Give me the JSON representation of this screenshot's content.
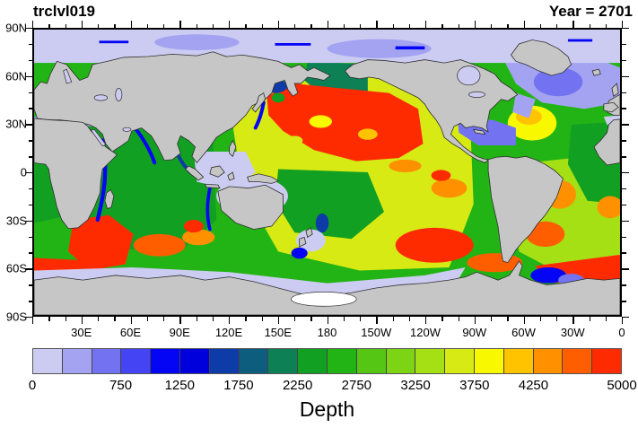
{
  "header": {
    "title_left": "trclvl019",
    "title_right": "Year = 2701"
  },
  "map": {
    "projection": "equirectangular, longitude 0E to 360E (wrap at Greenwich), latitude 90N to 90S",
    "x_tick_labels": [
      "30E",
      "60E",
      "90E",
      "120E",
      "150E",
      "180",
      "150W",
      "120W",
      "90W",
      "60W",
      "30W",
      "0"
    ],
    "x_tick_lons": [
      30,
      60,
      90,
      120,
      150,
      180,
      210,
      240,
      270,
      300,
      330,
      360
    ],
    "y_tick_labels": [
      "90N",
      "60N",
      "30N",
      "0",
      "30S",
      "60S",
      "90S"
    ],
    "y_tick_lats": [
      90,
      60,
      30,
      0,
      -30,
      -60,
      -90
    ],
    "major_tick_deg": 30,
    "minor_tick_deg": 10,
    "colors": {
      "land": "#c6c6c6",
      "coastline": "#2f2f2f",
      "shelf_lavender": "#ccccf2",
      "ice_shelf_white": "#ffffff",
      "frame": "#000000"
    }
  },
  "colorbar": {
    "title": "Depth",
    "min": 0,
    "max": 5000,
    "interval": 250,
    "tick_labels": [
      "0",
      "750",
      "1250",
      "1750",
      "2250",
      "2750",
      "3250",
      "3750",
      "4250",
      "5000"
    ],
    "tick_values": [
      0,
      750,
      1250,
      1750,
      2250,
      2750,
      3250,
      3750,
      4250,
      5000
    ],
    "colors": [
      "#ccccf2",
      "#a3a3f2",
      "#7373f2",
      "#4444f5",
      "#0505f5",
      "#0000dd",
      "#0d3ba8",
      "#0d5e7e",
      "#0e8055",
      "#12a022",
      "#22b414",
      "#55c614",
      "#7dd414",
      "#a5e014",
      "#d7ea14",
      "#f8f800",
      "#ffc300",
      "#ff9100",
      "#ff5e00",
      "#ff2b00"
    ]
  },
  "chart_data": {
    "type": "heatmap",
    "title": "trclvl019",
    "annotation": "Year = 2701",
    "colorbar_title": "Depth",
    "value_range": [
      0,
      5000
    ],
    "contour_interval": 250,
    "n_color_segments": 20,
    "palette": [
      "#ccccf2",
      "#a3a3f2",
      "#7373f2",
      "#4444f5",
      "#0505f5",
      "#0000dd",
      "#0d3ba8",
      "#0d5e7e",
      "#0e8055",
      "#12a022",
      "#22b414",
      "#55c614",
      "#7dd414",
      "#a5e014",
      "#d7ea14",
      "#f8f800",
      "#ffc300",
      "#ff9100",
      "#ff5e00",
      "#ff2b00"
    ],
    "x_axis": {
      "label": "",
      "tick_labels": [
        "30E",
        "60E",
        "90E",
        "120E",
        "150E",
        "180",
        "150W",
        "120W",
        "90W",
        "60W",
        "30W",
        "0"
      ],
      "range_deg": [
        0,
        360
      ]
    },
    "y_axis": {
      "label": "",
      "tick_labels": [
        "90N",
        "60N",
        "30N",
        "0",
        "30S",
        "60S",
        "90S"
      ],
      "range_deg": [
        -90,
        90
      ]
    },
    "qualitative_field": [
      {
        "region": "Arctic Ocean",
        "approx_value": "0-500 (pale lavender, scattered blue streaks ~1000-1500)"
      },
      {
        "region": "North Pacific basin",
        "approx_value": "4750-5000 (large red area with yellow ~3750 patches)"
      },
      {
        "region": "Northeast Pacific off N. America",
        "approx_value": "4250-5000 grading to yellow 3500 near coast"
      },
      {
        "region": "Sea of Okhotsk / Japan Sea",
        "approx_value": "mixed 1000-3500 (blue, teal, green, yellow)"
      },
      {
        "region": "Equatorial / South Pacific",
        "approx_value": "3000-4000 yellow-green, red patch 4750+ in SE Pacific"
      },
      {
        "region": "Southwest Pacific near New Zealand",
        "approx_value": "mixed 500-1500 shelves with deep blue trenches"
      },
      {
        "region": "Indian Ocean",
        "approx_value": "2750-3500 green; blue 1000-1500 coastal rims; red 4750+ southwest of Africa; orange 4000-4500 south of Australia"
      },
      {
        "region": "North Atlantic subpolar",
        "approx_value": "250-1000 lavender/periwinkle"
      },
      {
        "region": "Western North Atlantic",
        "approx_value": "3750-4250 yellow-orange blob"
      },
      {
        "region": "Caribbean / Gulf of Mexico",
        "approx_value": "500-1000 periwinkle"
      },
      {
        "region": "South Atlantic basins",
        "approx_value": "4000-4750 orange patches, green mid-Atlantic ridge 2750-3250"
      },
      {
        "region": "Southern Ocean 50-65S",
        "approx_value": "4500-5000 red/orange band, Atlantic-Indian sector"
      },
      {
        "region": "Antarctic margin",
        "approx_value": "0-500 lavender shelf, white 0 ice-shelf area near Ross Sea"
      },
      {
        "region": "Continental shelves (Indonesia, Patagonia, Hudson Bay, Mediterranean)",
        "approx_value": "0-500 pale lavender"
      },
      {
        "region": "Land",
        "approx_value": "gray mask (no data)"
      }
    ]
  }
}
